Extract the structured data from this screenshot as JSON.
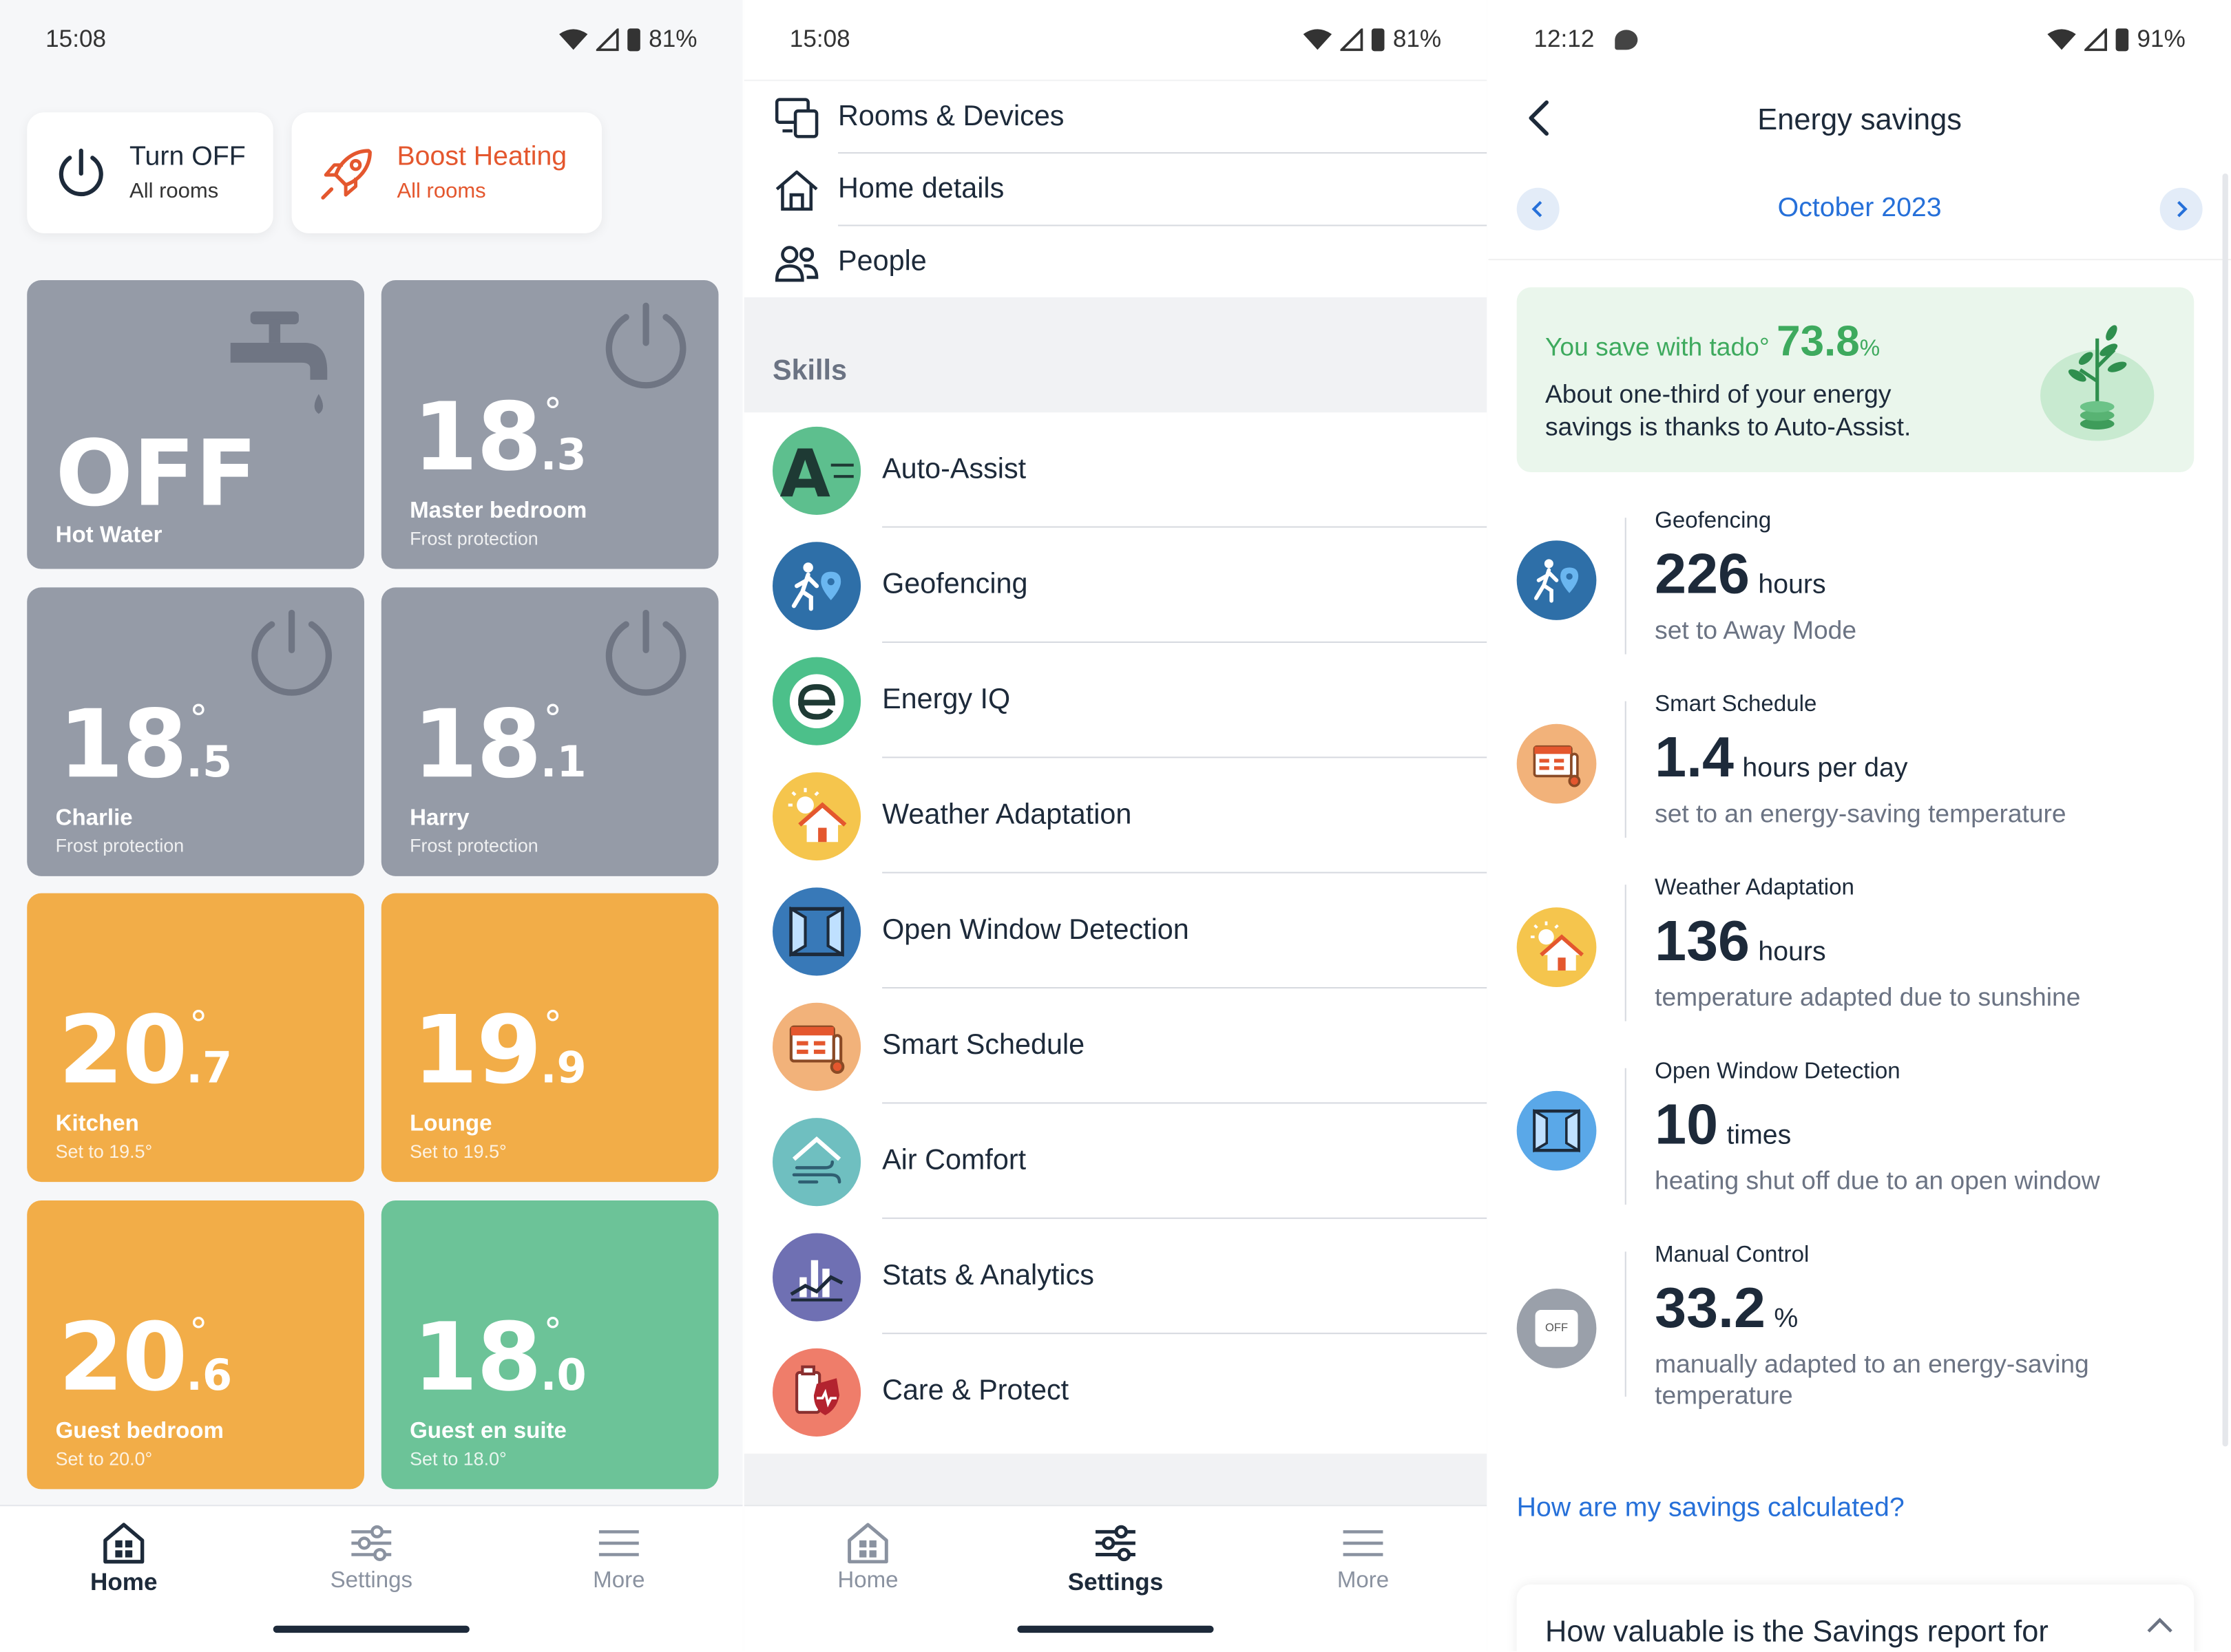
{
  "p1": {
    "status": {
      "time": "15:08",
      "battery": "81%"
    },
    "quick": {
      "off": {
        "title": "Turn OFF",
        "sub": "All rooms"
      },
      "boost": {
        "title": "Boost Heating",
        "sub": "All rooms"
      }
    },
    "tiles": [
      {
        "type": "off",
        "big": "OFF",
        "name": "Hot Water",
        "sub": ""
      },
      {
        "int": "18",
        "dec": ".3",
        "deg": "°",
        "name": "Master bedroom",
        "sub": "Frost protection"
      },
      {
        "int": "18",
        "dec": ".5",
        "deg": "°",
        "name": "Charlie",
        "sub": "Frost protection"
      },
      {
        "int": "18",
        "dec": ".1",
        "deg": "°",
        "name": "Harry",
        "sub": "Frost protection"
      },
      {
        "int": "20",
        "dec": ".7",
        "deg": "°",
        "name": "Kitchen",
        "sub": "Set to 19.5°"
      },
      {
        "int": "19",
        "dec": ".9",
        "deg": "°",
        "name": "Lounge",
        "sub": "Set to 19.5°"
      },
      {
        "int": "20",
        "dec": ".6",
        "deg": "°",
        "name": "Guest bedroom",
        "sub": "Set to 20.0°"
      },
      {
        "int": "18",
        "dec": ".0",
        "deg": "°",
        "name": "Guest en suite",
        "sub": "Set to 18.0°"
      }
    ]
  },
  "nav": {
    "home": "Home",
    "settings": "Settings",
    "more": "More"
  },
  "p2": {
    "status": {
      "time": "15:08",
      "battery": "81%"
    },
    "menu": [
      "Rooms & Devices",
      "Home details",
      "People"
    ],
    "skills_heading": "Skills",
    "skills": [
      "Auto-Assist",
      "Geofencing",
      "Energy IQ",
      "Weather Adaptation",
      "Open Window Detection",
      "Smart Schedule",
      "Air Comfort",
      "Stats & Analytics",
      "Care & Protect"
    ]
  },
  "p3": {
    "status": {
      "time": "12:12",
      "battery": "91%"
    },
    "title": "Energy savings",
    "month": "October 2023",
    "card": {
      "prefix": "You save with tado°",
      "value": "73.8",
      "pct": "%",
      "desc": "About one-third of your energy savings is thanks to Auto-Assist."
    },
    "stats": [
      {
        "head": "Geofencing",
        "num": "226",
        "unit": "hours",
        "desc": "set to Away Mode"
      },
      {
        "head": "Smart Schedule",
        "num": "1.4",
        "unit": "hours per day",
        "desc": "set to an energy-saving temperature"
      },
      {
        "head": "Weather Adaptation",
        "num": "136",
        "unit": "hours",
        "desc": "temperature adapted due to sunshine"
      },
      {
        "head": "Open Window Detection",
        "num": "10",
        "unit": "times",
        "desc": "heating shut off due to an open window"
      },
      {
        "head": "Manual Control",
        "num": "33.2",
        "unit": "%",
        "desc": "manually adapted to an energy-saving temperature",
        "icon_text": "OFF"
      }
    ],
    "link": "How are my savings calculated?",
    "feedback": "How valuable is the Savings report for"
  },
  "colors": {
    "accent_blue": "#2670d9",
    "boost_orange": "#e4572e",
    "tile_grey": "#959ba7",
    "tile_orange": "#f2ad48",
    "tile_green": "#6cc398",
    "save_green": "#3eaa5e"
  }
}
